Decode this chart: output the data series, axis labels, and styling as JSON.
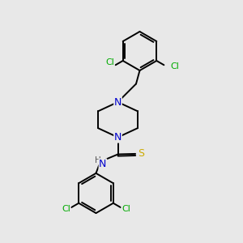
{
  "background_color": "#e8e8e8",
  "atom_colors": {
    "C": "#000000",
    "N": "#0000cc",
    "S": "#ccaa00",
    "Cl": "#00aa00",
    "H": "#555555"
  },
  "bond_color": "#000000",
  "bond_width": 1.4,
  "figsize": [
    3.0,
    3.0
  ],
  "dpi": 100
}
